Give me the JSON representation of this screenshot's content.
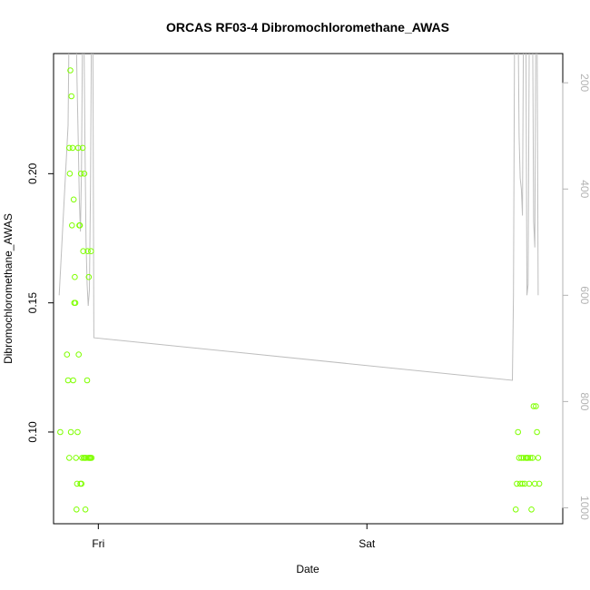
{
  "chart_data": {
    "type": "scatter",
    "title": "ORCAS RF03-4 Dibromochloromethane_AWAS",
    "xlabel": "Date",
    "ylabel": "Dibromochloromethane_AWAS",
    "x_ticks": [
      "Fri",
      "Sat"
    ],
    "y_ticks": [
      "0.10",
      "0.15",
      "0.20"
    ],
    "y_right_ticks": [
      "200",
      "400",
      "600",
      "800",
      "1000"
    ],
    "ylim": [
      0.0645,
      0.2465
    ],
    "y_right_lim": [
      1030,
      145
    ],
    "x_range_hours": [
      -4.0,
      41.5
    ],
    "colors": {
      "points": "#7fff00",
      "line": "#bebebe",
      "axis": "#000000",
      "right_axis": "#b3b3b3"
    },
    "series": [
      {
        "kind": "points",
        "x_hours": [
          -3.4,
          -2.8,
          -2.7,
          -2.6,
          -2.6,
          -2.55,
          -2.5,
          -2.45,
          -2.4,
          -2.35,
          -2.3,
          -2.25,
          -2.2,
          -2.15,
          -2.1,
          -2.05,
          -2.0,
          -1.95,
          -1.9,
          -1.85,
          -1.8,
          -1.75,
          -1.7,
          -1.65,
          -1.6,
          -1.55,
          -1.5,
          -1.45,
          -1.4,
          -1.35,
          -1.3,
          -1.25,
          -1.2,
          -1.15,
          -1.1,
          -1.0,
          -0.95,
          -0.9,
          -0.85,
          -0.8,
          -0.75,
          -0.7,
          -0.65,
          -0.6,
          37.3,
          37.4,
          37.5,
          37.6,
          37.7,
          37.8,
          37.9,
          38.0,
          38.1,
          38.2,
          38.3,
          38.4,
          38.5,
          38.6,
          38.7,
          38.8,
          38.9,
          39.0,
          39.1,
          39.2,
          39.3,
          39.4
        ],
        "y": [
          0.1,
          0.13,
          0.12,
          0.09,
          0.21,
          0.2,
          0.24,
          0.1,
          0.23,
          0.18,
          0.21,
          0.12,
          0.19,
          0.15,
          0.16,
          0.15,
          0.09,
          0.07,
          0.08,
          0.1,
          0.21,
          0.13,
          0.18,
          0.18,
          0.08,
          0.2,
          0.08,
          0.09,
          0.21,
          0.17,
          0.09,
          0.2,
          0.09,
          0.07,
          0.09,
          0.12,
          0.17,
          0.09,
          0.16,
          0.09,
          0.09,
          0.09,
          0.17,
          0.09,
          0.07,
          0.08,
          0.1,
          0.09,
          0.08,
          0.09,
          0.08,
          0.09,
          0.08,
          0.09,
          0.09,
          0.09,
          0.08,
          0.09,
          0.07,
          0.09,
          0.11,
          0.08,
          0.11,
          0.1,
          0.09,
          0.08
        ]
      },
      {
        "kind": "line",
        "x_hours": [
          -3.5,
          -2.7,
          -2.6,
          -2.4,
          -2.3,
          -2.2,
          -2.1,
          -2.0,
          -1.9,
          -1.8,
          -1.7,
          -1.6,
          -1.5,
          -1.4,
          -1.3,
          -1.2,
          -1.1,
          -1.0,
          -0.9,
          -0.8,
          -0.7,
          -0.6,
          -0.5,
          -0.4,
          37.0,
          37.1,
          37.2,
          37.3,
          37.4,
          37.5,
          37.6,
          37.7,
          37.8,
          37.9,
          38.0,
          38.1,
          38.2,
          38.3,
          38.4,
          38.5,
          38.6,
          38.7,
          38.8,
          38.9,
          39.0,
          39.1,
          39.2,
          39.3
        ],
        "y_right": [
          600,
          280,
          60,
          70,
          120,
          70,
          60,
          80,
          200,
          300,
          420,
          480,
          360,
          60,
          60,
          300,
          500,
          580,
          620,
          590,
          400,
          60,
          60,
          680,
          760,
          600,
          60,
          60,
          60,
          60,
          300,
          380,
          400,
          450,
          60,
          60,
          60,
          600,
          580,
          150,
          60,
          60,
          60,
          460,
          510,
          60,
          60,
          600
        ]
      }
    ]
  }
}
